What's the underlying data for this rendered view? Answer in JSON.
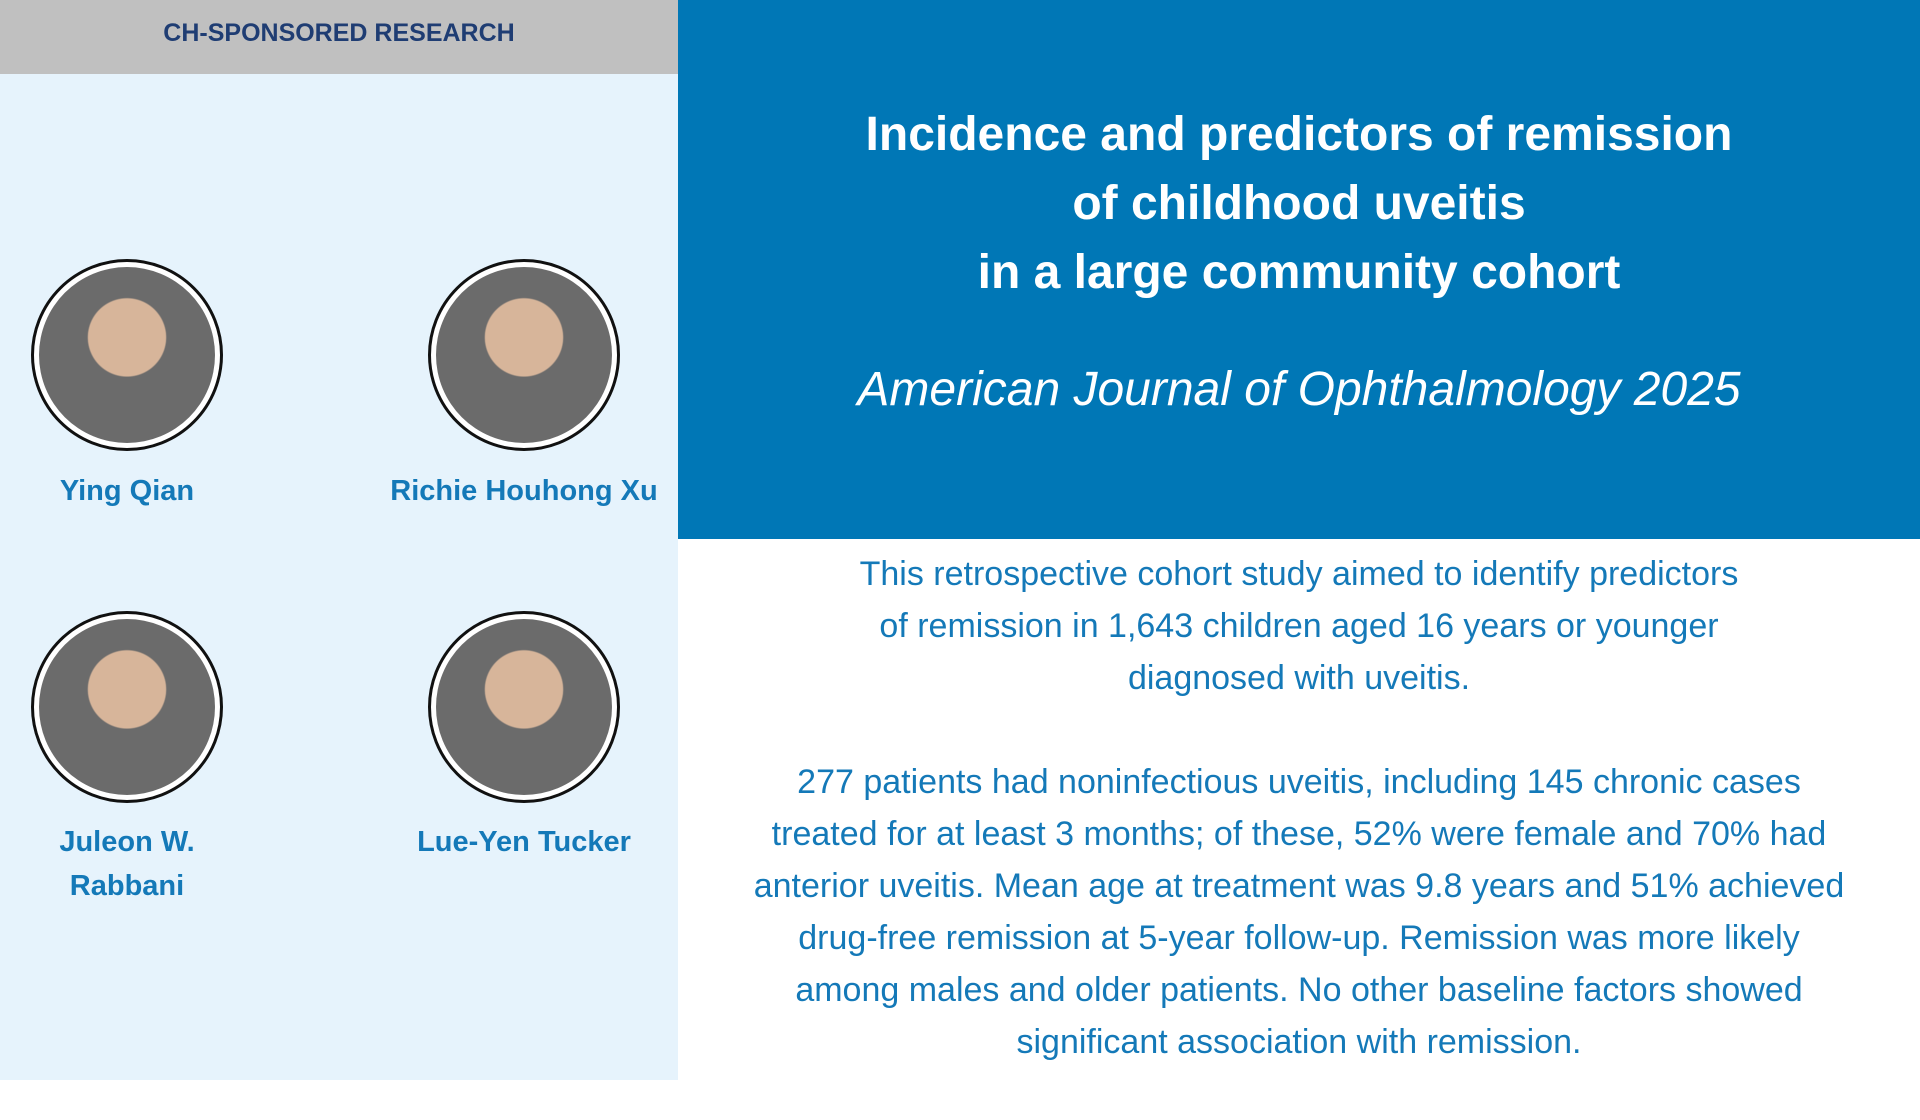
{
  "header": {
    "label": "CH-SPONSORED RESEARCH"
  },
  "title": {
    "lines": [
      "Incidence and predictors of remission",
      "of childhood uveitis",
      "in a large community cohort"
    ],
    "journal": "American Journal of Ophthalmology 2025"
  },
  "people": [
    {
      "name": "Ying Qian"
    },
    {
      "name": "Richie Houhong Xu"
    },
    {
      "name": "Juleon W. Rabbani"
    },
    {
      "name": "Lue-Yen Tucker"
    }
  ],
  "summary": {
    "paragraphs": [
      [
        "This retrospective cohort study aimed to identify predictors",
        "of remission in 1,643 children aged 16 years or younger",
        "diagnosed with uveitis."
      ],
      [
        "277 patients had noninfectious uveitis, including 145 chronic cases",
        "treated for at least 3 months; of these, 52% were female and 70% had",
        "anterior uveitis. Mean age at treatment was 9.8 years and 51% achieved",
        "drug-free remission at 5-year follow-up. Remission was more likely",
        "among males and older patients. No other baseline factors showed",
        "significant association with remission."
      ]
    ]
  }
}
